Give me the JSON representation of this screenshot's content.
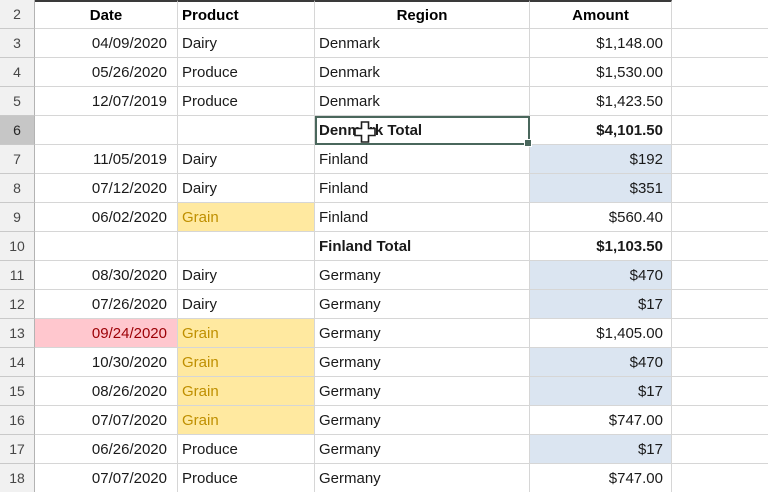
{
  "sheet": {
    "columns": {
      "date": "Date",
      "product": "Product",
      "region": "Region",
      "amount": "Amount"
    },
    "header_row_number": 2,
    "rows": [
      {
        "num": 3,
        "date": "04/09/2020",
        "product": "Dairy",
        "region": "Denmark",
        "amount": "$1,148.00"
      },
      {
        "num": 4,
        "date": "05/26/2020",
        "product": "Produce",
        "region": "Denmark",
        "amount": "$1,530.00"
      },
      {
        "num": 5,
        "date": "12/07/2019",
        "product": "Produce",
        "region": "Denmark",
        "amount": "$1,423.50"
      },
      {
        "num": 6,
        "date": "",
        "product": "",
        "region": "Denmark Total",
        "amount": "$4,101.50",
        "region_style": "bold",
        "amount_style": "bold",
        "selected": true
      },
      {
        "num": 7,
        "date": "11/05/2019",
        "product": "Dairy",
        "region": "Finland",
        "amount": "$192",
        "amount_style": "blue"
      },
      {
        "num": 8,
        "date": "07/12/2020",
        "product": "Dairy",
        "region": "Finland",
        "amount": "$351",
        "amount_style": "blue"
      },
      {
        "num": 9,
        "date": "06/02/2020",
        "product": "Grain",
        "region": "Finland",
        "amount": "$560.40",
        "product_style": "gold"
      },
      {
        "num": 10,
        "date": "",
        "product": "",
        "region": "Finland Total",
        "amount": "$1,103.50",
        "region_style": "bold",
        "amount_style": "bold"
      },
      {
        "num": 11,
        "date": "08/30/2020",
        "product": "Dairy",
        "region": "Germany",
        "amount": "$470",
        "amount_style": "blue"
      },
      {
        "num": 12,
        "date": "07/26/2020",
        "product": "Dairy",
        "region": "Germany",
        "amount": "$17",
        "amount_style": "blue"
      },
      {
        "num": 13,
        "date": "09/24/2020",
        "product": "Grain",
        "region": "Germany",
        "amount": "$1,405.00",
        "date_style": "bad",
        "product_style": "gold"
      },
      {
        "num": 14,
        "date": "10/30/2020",
        "product": "Grain",
        "region": "Germany",
        "amount": "$470",
        "product_style": "gold",
        "amount_style": "blue"
      },
      {
        "num": 15,
        "date": "08/26/2020",
        "product": "Grain",
        "region": "Germany",
        "amount": "$17",
        "product_style": "gold",
        "amount_style": "blue"
      },
      {
        "num": 16,
        "date": "07/07/2020",
        "product": "Grain",
        "region": "Germany",
        "amount": "$747.00",
        "product_style": "gold"
      },
      {
        "num": 17,
        "date": "06/26/2020",
        "product": "Produce",
        "region": "Germany",
        "amount": "$17",
        "amount_style": "blue"
      },
      {
        "num": 18,
        "date": "07/07/2020",
        "product": "Produce",
        "region": "Germany",
        "amount": "$747.00"
      }
    ],
    "selection": {
      "row": 6,
      "column": "Region",
      "value": "Denmark Total"
    },
    "cursor": "cell-plus-cursor",
    "colors": {
      "selection_border": "#4a675c",
      "gridline": "#d6d6d6",
      "row_header_bg": "#f1f1f1",
      "row_header_selected_bg": "#c6c6c6",
      "highlight_gold_bg": "#ffe9a0",
      "highlight_gold_text": "#bf8f00",
      "highlight_bad_bg": "#ffc7ce",
      "highlight_bad_text": "#9c0006",
      "highlight_blue_bg": "#dbe5f1"
    }
  }
}
